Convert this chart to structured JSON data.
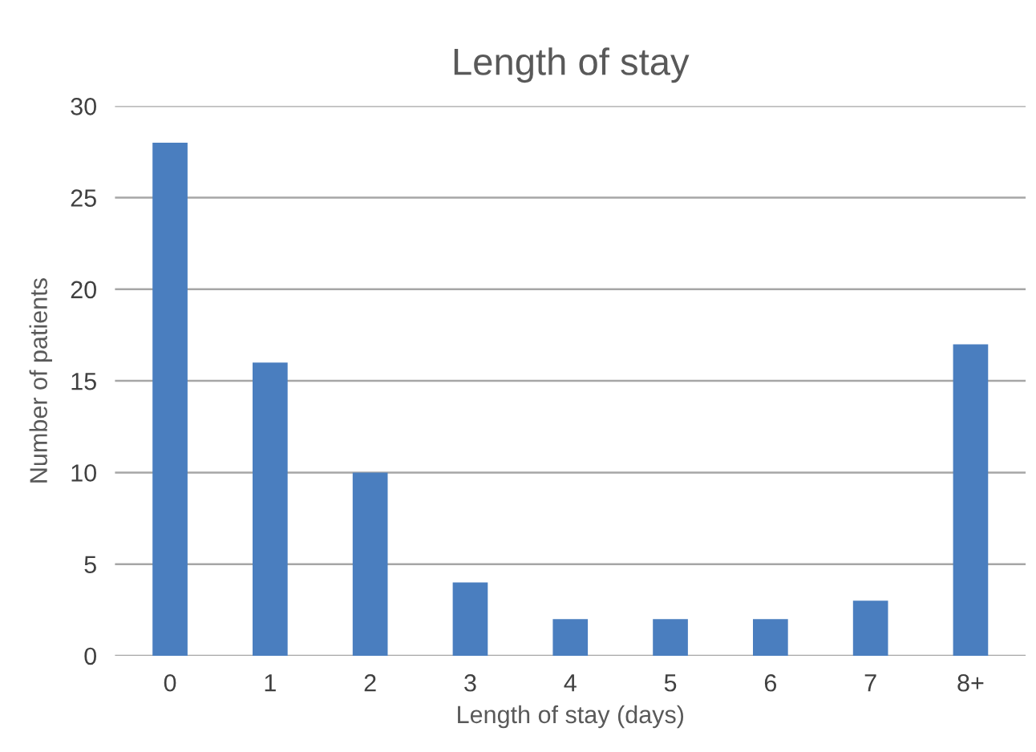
{
  "chart_data": {
    "type": "bar",
    "title": "Length of stay",
    "xlabel": "Length of stay (days)",
    "ylabel": "Number of patients",
    "categories": [
      "0",
      "1",
      "2",
      "3",
      "4",
      "5",
      "6",
      "7",
      "8+"
    ],
    "values": [
      28,
      16,
      10,
      4,
      2,
      2,
      2,
      3,
      17
    ],
    "color": "#4a7ebf",
    "ylim": [
      0,
      30
    ],
    "yticks": [
      0,
      5,
      10,
      15,
      20,
      25,
      30
    ],
    "grid": "y",
    "legend": false
  }
}
